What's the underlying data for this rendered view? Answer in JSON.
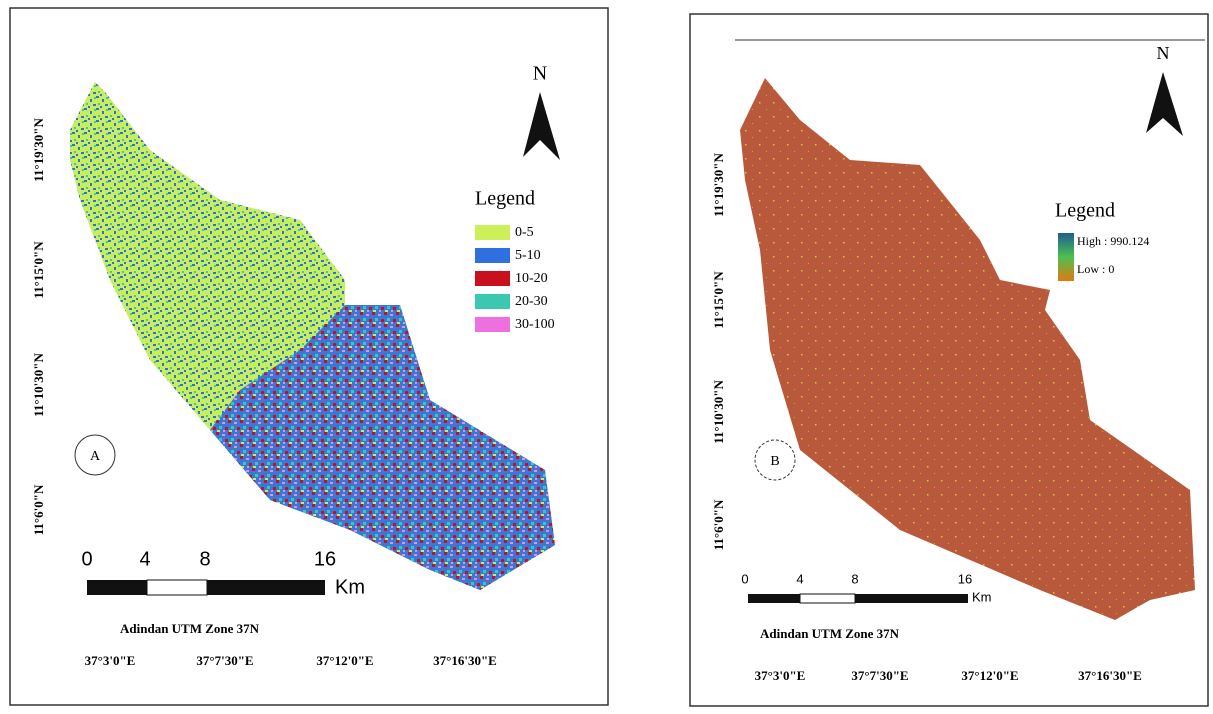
{
  "panels": [
    {
      "label": "A",
      "north": "N",
      "y_labels": [
        "11°19'30\"N",
        "11°15'0\"N",
        "11°10'30\"N",
        "11°6'0\"N"
      ],
      "x_labels": [
        "37°3'0\"E",
        "37°7'30\"E",
        "37°12'0\"E",
        "37°16'30\"E"
      ],
      "legend": {
        "title": "Legend",
        "items": [
          {
            "label": "0-5",
            "color": "#ccf05a"
          },
          {
            "label": "5-10",
            "color": "#2f6fe0"
          },
          {
            "label": "10-20",
            "color": "#c8101e"
          },
          {
            "label": "20-30",
            "color": "#3cc8b0"
          },
          {
            "label": "30-100",
            "color": "#ee6fe0"
          }
        ]
      },
      "scale_bar": {
        "ticks": [
          "0",
          "4",
          "8",
          "16"
        ],
        "unit": "Km"
      },
      "caption": "Adindan UTM Zone 37N"
    },
    {
      "label": "B",
      "north": "N",
      "y_labels": [
        "11°19'30\"N",
        "11°15'0\"N",
        "11°10'30\"N",
        "11°6'0\"N"
      ],
      "x_labels": [
        "37°3'0\"E",
        "37°7'30\"E",
        "37°12'0\"E",
        "37°16'30\"E"
      ],
      "legend": {
        "title": "Legend",
        "high": "High : 990.124",
        "low": "Low : 0"
      },
      "scale_bar": {
        "ticks": [
          "0",
          "4",
          "8",
          "16"
        ],
        "unit": "Km"
      },
      "caption": "Adindan UTM Zone 37N"
    }
  ]
}
